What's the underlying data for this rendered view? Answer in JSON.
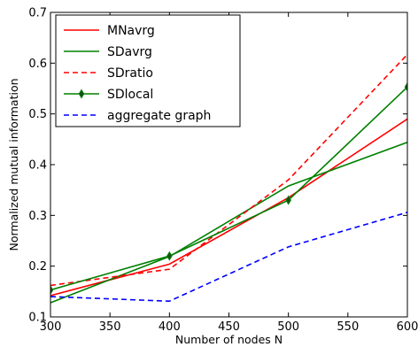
{
  "chart_data": {
    "type": "line",
    "xlabel": "Number of nodes N",
    "ylabel": "Normalized mutual information",
    "xlim": [
      300,
      600
    ],
    "ylim": [
      0.1,
      0.7
    ],
    "xticks": [
      300,
      350,
      400,
      450,
      500,
      550,
      600
    ],
    "yticks": [
      0.1,
      0.2,
      0.3,
      0.4,
      0.5,
      0.6,
      0.7
    ],
    "grid": false,
    "legend_position": "upper-left",
    "series": [
      {
        "name": "MNavrg",
        "color": "#ff0000",
        "dash": "solid",
        "marker": "none",
        "x": [
          300,
          400,
          500,
          600
        ],
        "y": [
          0.142,
          0.204,
          0.335,
          0.49
        ]
      },
      {
        "name": "SDavrg",
        "color": "#008000",
        "dash": "solid",
        "marker": "none",
        "x": [
          300,
          400,
          500,
          600
        ],
        "y": [
          0.128,
          0.219,
          0.358,
          0.444
        ]
      },
      {
        "name": "SDratio",
        "color": "#ff0000",
        "dash": "dashed",
        "marker": "none",
        "x": [
          300,
          400,
          500,
          600
        ],
        "y": [
          0.162,
          0.194,
          0.37,
          0.617
        ]
      },
      {
        "name": "SDlocal",
        "color": "#008000",
        "dash": "solid",
        "marker": "diamond",
        "x": [
          300,
          400,
          500,
          600
        ],
        "y": [
          0.153,
          0.22,
          0.33,
          0.553
        ]
      },
      {
        "name": "aggregate graph",
        "color": "#0000ff",
        "dash": "dashed",
        "marker": "none",
        "x": [
          300,
          400,
          500,
          600
        ],
        "y": [
          0.14,
          0.131,
          0.238,
          0.306
        ]
      }
    ]
  }
}
